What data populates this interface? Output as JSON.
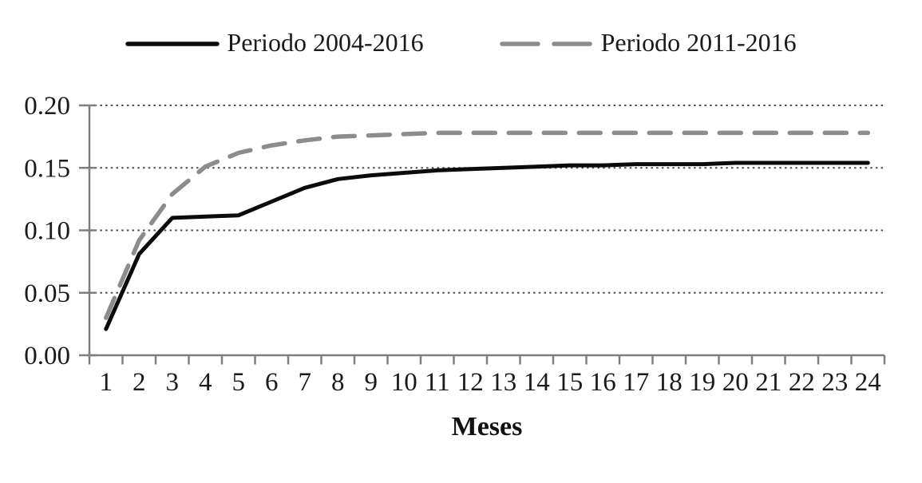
{
  "figure": {
    "background": "#ffffff",
    "text_color": "#1a1a1a",
    "axis_color": "#7f7f7f",
    "grid_color": "#4d4d4d"
  },
  "chart_data": {
    "type": "line",
    "title": "",
    "xlabel": "Meses",
    "ylabel": "",
    "x": [
      1,
      2,
      3,
      4,
      5,
      6,
      7,
      8,
      9,
      10,
      11,
      12,
      13,
      14,
      15,
      16,
      17,
      18,
      19,
      20,
      21,
      22,
      23,
      24
    ],
    "x_tick_labels": [
      "1",
      "2",
      "3",
      "4",
      "5",
      "6",
      "7",
      "8",
      "9",
      "10",
      "11",
      "12",
      "13",
      "14",
      "15",
      "16",
      "17",
      "18",
      "19",
      "20",
      "21",
      "22",
      "23",
      "24"
    ],
    "ylim": [
      0,
      0.2
    ],
    "y_ticks": [
      0,
      0.05,
      0.1,
      0.15,
      0.2
    ],
    "y_tick_labels": [
      "0.00",
      "0.05",
      "0.10",
      "0.15",
      "0.20"
    ],
    "grid": "horizontal-dotted",
    "legend_position": "top",
    "series": [
      {
        "name": "Periodo 2004-2016",
        "color": "#0b0b0b",
        "style": "solid",
        "values": [
          0.021,
          0.081,
          0.11,
          0.111,
          0.112,
          0.123,
          0.134,
          0.141,
          0.144,
          0.146,
          0.148,
          0.149,
          0.15,
          0.151,
          0.152,
          0.152,
          0.153,
          0.153,
          0.153,
          0.154,
          0.154,
          0.154,
          0.154,
          0.154
        ]
      },
      {
        "name": "Periodo 2011-2016",
        "color": "#8c8c8c",
        "style": "dashed",
        "values": [
          0.03,
          0.092,
          0.129,
          0.151,
          0.162,
          0.168,
          0.172,
          0.175,
          0.176,
          0.177,
          0.178,
          0.178,
          0.178,
          0.178,
          0.178,
          0.178,
          0.178,
          0.178,
          0.178,
          0.178,
          0.178,
          0.178,
          0.178,
          0.178
        ]
      }
    ]
  }
}
